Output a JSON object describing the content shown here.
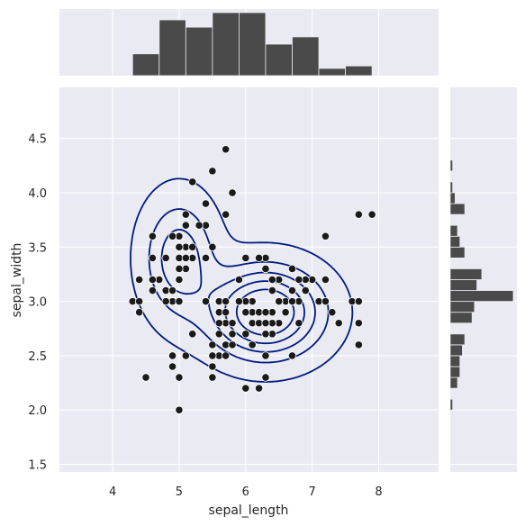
{
  "chart_data": {
    "type": "scatter",
    "title": "",
    "xlabel": "sepal_length",
    "ylabel": "sepal_width",
    "xlim": [
      3.2,
      8.9
    ],
    "ylim": [
      1.43,
      4.97
    ],
    "xticks": [
      "4",
      "5",
      "6",
      "7",
      "8"
    ],
    "yticks": [
      "1.5",
      "2.0",
      "2.5",
      "3.0",
      "3.5",
      "4.0",
      "4.5"
    ],
    "grid": true,
    "colors": {
      "background": "#eaeaf2",
      "grid": "#ffffff",
      "points": "#1a1a1a",
      "bars": "#4a4a4a",
      "contour": "#001c7f"
    },
    "scatter": {
      "x": [
        5.1,
        4.9,
        4.7,
        4.6,
        5.0,
        5.4,
        4.6,
        5.0,
        4.4,
        4.9,
        5.4,
        4.8,
        4.8,
        4.3,
        5.8,
        5.7,
        5.4,
        5.1,
        5.7,
        5.1,
        5.4,
        5.1,
        4.6,
        5.1,
        4.8,
        5.0,
        5.0,
        5.2,
        5.2,
        4.7,
        4.8,
        5.4,
        5.2,
        5.5,
        4.9,
        5.0,
        5.5,
        4.9,
        4.4,
        5.1,
        5.0,
        4.5,
        4.4,
        5.0,
        5.1,
        4.8,
        5.1,
        4.6,
        5.3,
        5.0,
        7.0,
        6.4,
        6.9,
        5.5,
        6.5,
        5.7,
        6.3,
        4.9,
        6.6,
        5.2,
        5.0,
        5.9,
        6.0,
        6.1,
        5.6,
        6.7,
        5.6,
        5.8,
        6.2,
        5.6,
        5.9,
        6.1,
        6.3,
        6.1,
        6.4,
        6.6,
        6.8,
        6.7,
        6.0,
        5.7,
        5.5,
        5.5,
        5.8,
        6.0,
        5.4,
        6.0,
        6.7,
        6.3,
        5.6,
        5.5,
        5.5,
        6.1,
        5.8,
        5.0,
        5.6,
        5.7,
        5.7,
        6.2,
        5.1,
        5.7,
        6.3,
        5.8,
        7.1,
        6.3,
        6.5,
        7.6,
        4.9,
        7.3,
        6.7,
        7.2,
        6.5,
        6.4,
        6.8,
        5.7,
        5.8,
        6.4,
        6.5,
        7.7,
        7.7,
        6.0,
        6.9,
        5.6,
        7.7,
        6.3,
        6.7,
        7.2,
        6.2,
        6.1,
        6.4,
        7.2,
        7.4,
        7.9,
        6.4,
        6.3,
        6.1,
        7.7,
        6.3,
        6.4,
        6.0,
        6.9,
        6.7,
        6.9,
        5.8,
        6.8,
        6.7,
        6.7,
        6.3,
        6.5,
        6.2,
        5.9
      ],
      "y": [
        3.5,
        3.0,
        3.2,
        3.1,
        3.6,
        3.9,
        3.4,
        3.4,
        2.9,
        3.1,
        3.7,
        3.4,
        3.0,
        3.0,
        4.0,
        4.4,
        3.9,
        3.5,
        3.8,
        3.8,
        3.4,
        3.7,
        3.6,
        3.3,
        3.4,
        3.0,
        3.4,
        3.5,
        3.4,
        3.2,
        3.1,
        3.4,
        4.1,
        4.2,
        3.1,
        3.2,
        3.5,
        3.6,
        3.0,
        3.4,
        3.5,
        2.3,
        3.2,
        3.5,
        3.8,
        3.0,
        3.8,
        3.2,
        3.7,
        3.3,
        3.2,
        3.2,
        3.1,
        2.3,
        2.8,
        2.8,
        3.3,
        2.4,
        2.9,
        2.7,
        2.0,
        3.0,
        2.2,
        2.9,
        2.9,
        3.1,
        3.0,
        2.7,
        2.2,
        2.5,
        3.2,
        2.8,
        2.5,
        2.8,
        2.9,
        3.0,
        2.8,
        3.0,
        2.9,
        2.6,
        2.4,
        2.4,
        2.7,
        2.7,
        3.0,
        3.4,
        3.1,
        2.3,
        3.0,
        2.5,
        2.6,
        3.0,
        2.6,
        2.3,
        2.7,
        3.0,
        2.9,
        2.9,
        2.5,
        2.8,
        3.3,
        2.7,
        3.0,
        2.9,
        3.0,
        3.0,
        2.5,
        2.9,
        2.5,
        3.6,
        3.2,
        2.7,
        3.0,
        2.5,
        2.8,
        3.2,
        3.0,
        3.8,
        2.6,
        2.2,
        3.2,
        2.8,
        2.8,
        2.7,
        3.3,
        3.2,
        2.8,
        3.0,
        2.8,
        3.0,
        2.8,
        3.8,
        2.8,
        2.8,
        2.6,
        3.0,
        3.4,
        3.1,
        3.0,
        3.1,
        3.1,
        3.1,
        2.7,
        3.2,
        3.3,
        3.0,
        2.5,
        3.0,
        3.4,
        3.0
      ]
    },
    "x_histogram": {
      "bins": [
        4.3,
        4.7,
        5.1,
        5.5,
        5.9,
        6.3,
        6.7,
        7.1,
        7.5,
        7.9
      ],
      "counts": [
        9,
        23,
        20,
        26,
        26,
        13,
        16,
        3,
        4
      ]
    },
    "y_histogram": {
      "bins": [
        2.0,
        2.1,
        2.2,
        2.3,
        2.4,
        2.5,
        2.6,
        2.7,
        2.8,
        2.9,
        3.0,
        3.1,
        3.2,
        3.3,
        3.4,
        3.5,
        3.6,
        3.7,
        3.8,
        3.9,
        4.0,
        4.1,
        4.2,
        4.3,
        4.4
      ],
      "counts": [
        1,
        0,
        3,
        4,
        4,
        5,
        6,
        0,
        9,
        10,
        26,
        11,
        13,
        0,
        6,
        4,
        3,
        0,
        6,
        2,
        1,
        0,
        1,
        0
      ]
    },
    "contours": {
      "type": "kde",
      "levels": 5,
      "peaks": [
        {
          "x": 5.0,
          "y": 3.4,
          "sx": 0.35,
          "sy": 0.35,
          "w": 1.0
        },
        {
          "x": 6.3,
          "y": 2.9,
          "sx": 0.55,
          "sy": 0.27,
          "w": 1.9
        }
      ]
    }
  }
}
